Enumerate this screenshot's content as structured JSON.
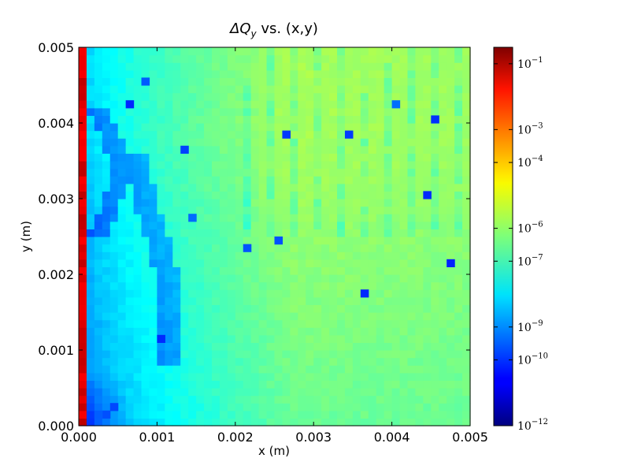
{
  "chart_data": {
    "type": "heatmap",
    "title": "ΔQ",
    "title_sub": "y",
    "title_rest": " vs. (x,y)",
    "xlabel": "x (m)",
    "ylabel": "y (m)",
    "xlim": [
      0,
      0.005
    ],
    "ylim": [
      0,
      0.005
    ],
    "x_ticks": [
      0,
      0.001,
      0.002,
      0.003,
      0.004,
      0.005
    ],
    "x_tick_labels": [
      "0.000",
      "0.001",
      "0.002",
      "0.003",
      "0.004",
      "0.005"
    ],
    "y_ticks": [
      0,
      0.001,
      0.002,
      0.003,
      0.004,
      0.005
    ],
    "y_tick_labels": [
      "0.000",
      "0.001",
      "0.002",
      "0.003",
      "0.004",
      "0.005"
    ],
    "colorscale": "jet",
    "color_scale_type": "log",
    "color_range_log10": [
      -12,
      -0.5
    ],
    "colorbar_ticks": [
      {
        "exp": -1,
        "base": "10",
        "power": "−1"
      },
      {
        "exp": -3,
        "base": "10",
        "power": "−3"
      },
      {
        "exp": -4,
        "base": "10",
        "power": "−4"
      },
      {
        "exp": -6,
        "base": "10",
        "power": "−6"
      },
      {
        "exp": -7,
        "base": "10",
        "power": "−7"
      },
      {
        "exp": -9,
        "base": "10",
        "power": "−9"
      },
      {
        "exp": -10,
        "base": "10",
        "power": "−10"
      },
      {
        "exp": -12,
        "base": "10",
        "power": "−12"
      }
    ],
    "grid_resolution": [
      50,
      50
    ],
    "field_description": {
      "left_edge_column_log10": -1.2,
      "background_low_x_log10": -9.5,
      "background_high_x_log10": -6.5,
      "upper_right_band_log10": -5.8,
      "min_spots_log10": -10.3
    }
  }
}
